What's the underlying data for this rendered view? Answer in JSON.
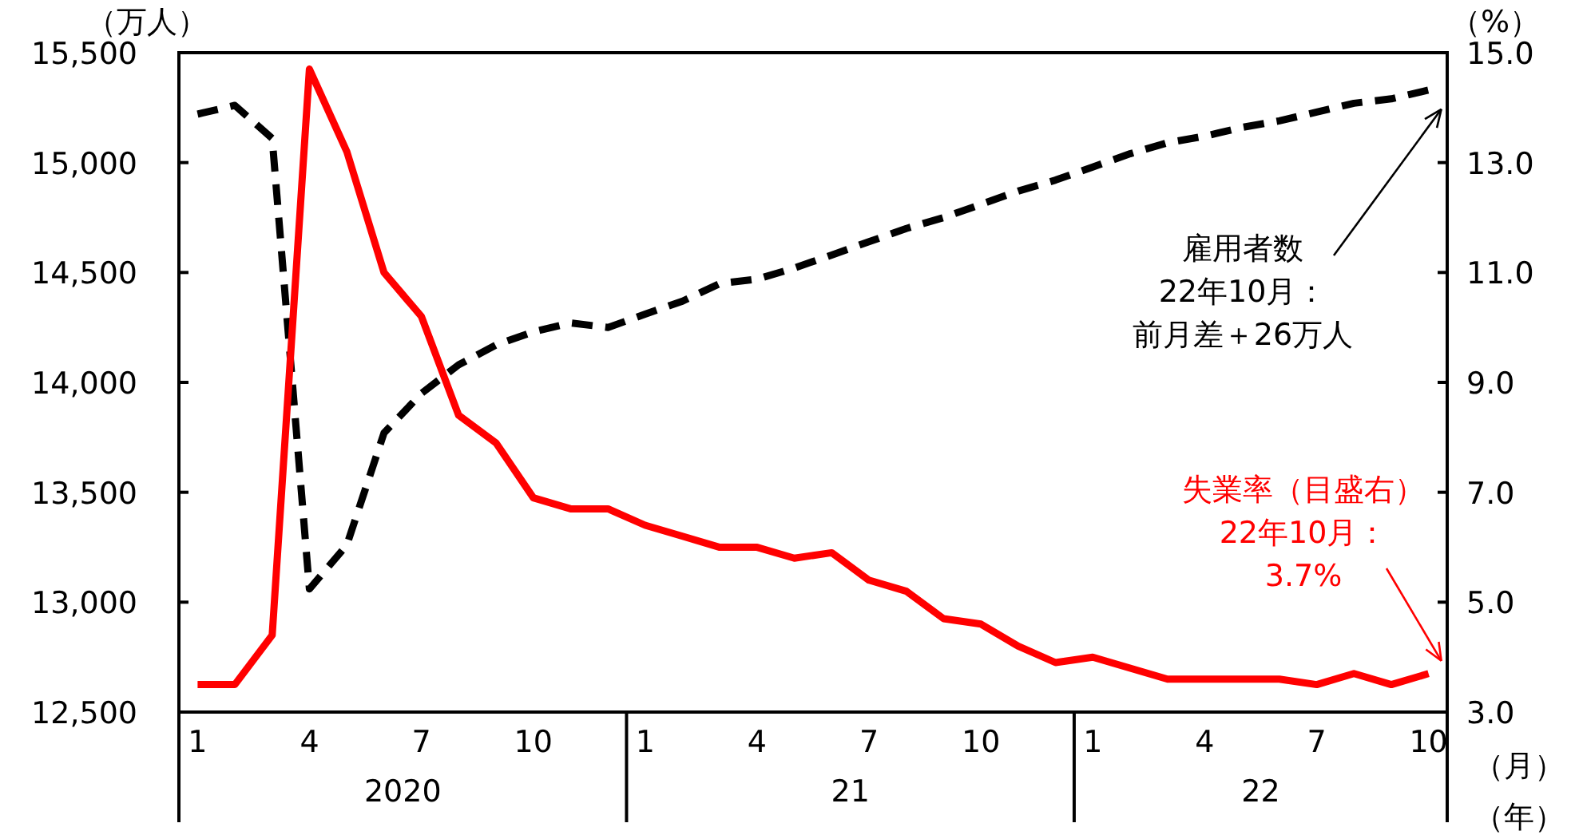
{
  "chart_data": {
    "type": "line",
    "ylabel": "（万人）",
    "y2label": "（%）",
    "xlabel": "（月）",
    "categories": [
      "1",
      null,
      null,
      "4",
      null,
      null,
      "7",
      null,
      null,
      "10",
      null,
      null,
      "1",
      null,
      null,
      "4",
      null,
      null,
      "7",
      null,
      null,
      "10",
      null,
      null,
      "1",
      null,
      null,
      "4",
      null,
      null,
      "7",
      null,
      null,
      "10"
    ],
    "series": [
      {
        "color": "#000000",
        "line_style": "dashed",
        "axis": "y",
        "values": [
          15220,
          15260,
          15110,
          13060,
          13260,
          13770,
          13950,
          14080,
          14170,
          14230,
          14270,
          14250,
          14310,
          14370,
          14450,
          14470,
          14520,
          14580,
          14640,
          14700,
          14750,
          14810,
          14870,
          14920,
          14980,
          15040,
          15090,
          15120,
          15160,
          15190,
          15230,
          15270,
          15290,
          15330
        ]
      },
      {
        "color": "#ff0000",
        "line_style": "solid",
        "axis": "y2",
        "values": [
          3.5,
          3.5,
          4.4,
          14.7,
          13.2,
          11.0,
          10.2,
          8.4,
          7.9,
          6.9,
          6.7,
          6.7,
          6.4,
          6.2,
          6.0,
          6.0,
          5.8,
          5.9,
          5.4,
          5.2,
          4.7,
          4.6,
          4.2,
          3.9,
          4.0,
          3.8,
          3.6,
          3.6,
          3.6,
          3.6,
          3.5,
          3.7,
          3.5,
          3.7
        ]
      }
    ],
    "ylim": [
      12500,
      15500
    ],
    "yticks": [
      {
        "value": 12500,
        "label": "12,500"
      },
      {
        "value": 13000,
        "label": "13,000"
      },
      {
        "value": 13500,
        "label": "13,500"
      },
      {
        "value": 14000,
        "label": "14,000"
      },
      {
        "value": 14500,
        "label": "14,500"
      },
      {
        "value": 15000,
        "label": "15,000"
      },
      {
        "value": 15500,
        "label": "15,500"
      }
    ],
    "y2lim": [
      3,
      15
    ],
    "y2ticks": [
      {
        "value": 3,
        "label": "3.0"
      },
      {
        "value": 5,
        "label": "5.0"
      },
      {
        "value": 7,
        "label": "7.0"
      },
      {
        "value": 9,
        "label": "9.0"
      },
      {
        "value": 11,
        "label": "11.0"
      },
      {
        "value": 13,
        "label": "13.0"
      },
      {
        "value": 15,
        "label": "15.0"
      }
    ],
    "annotations": [
      "2020",
      "21",
      "22",
      "雇用者数",
      "22年10月：",
      "前月差＋26万人",
      "失業率（目盛右）",
      "22年10月：",
      "3.7%",
      "（年）"
    ],
    "grid": false
  }
}
